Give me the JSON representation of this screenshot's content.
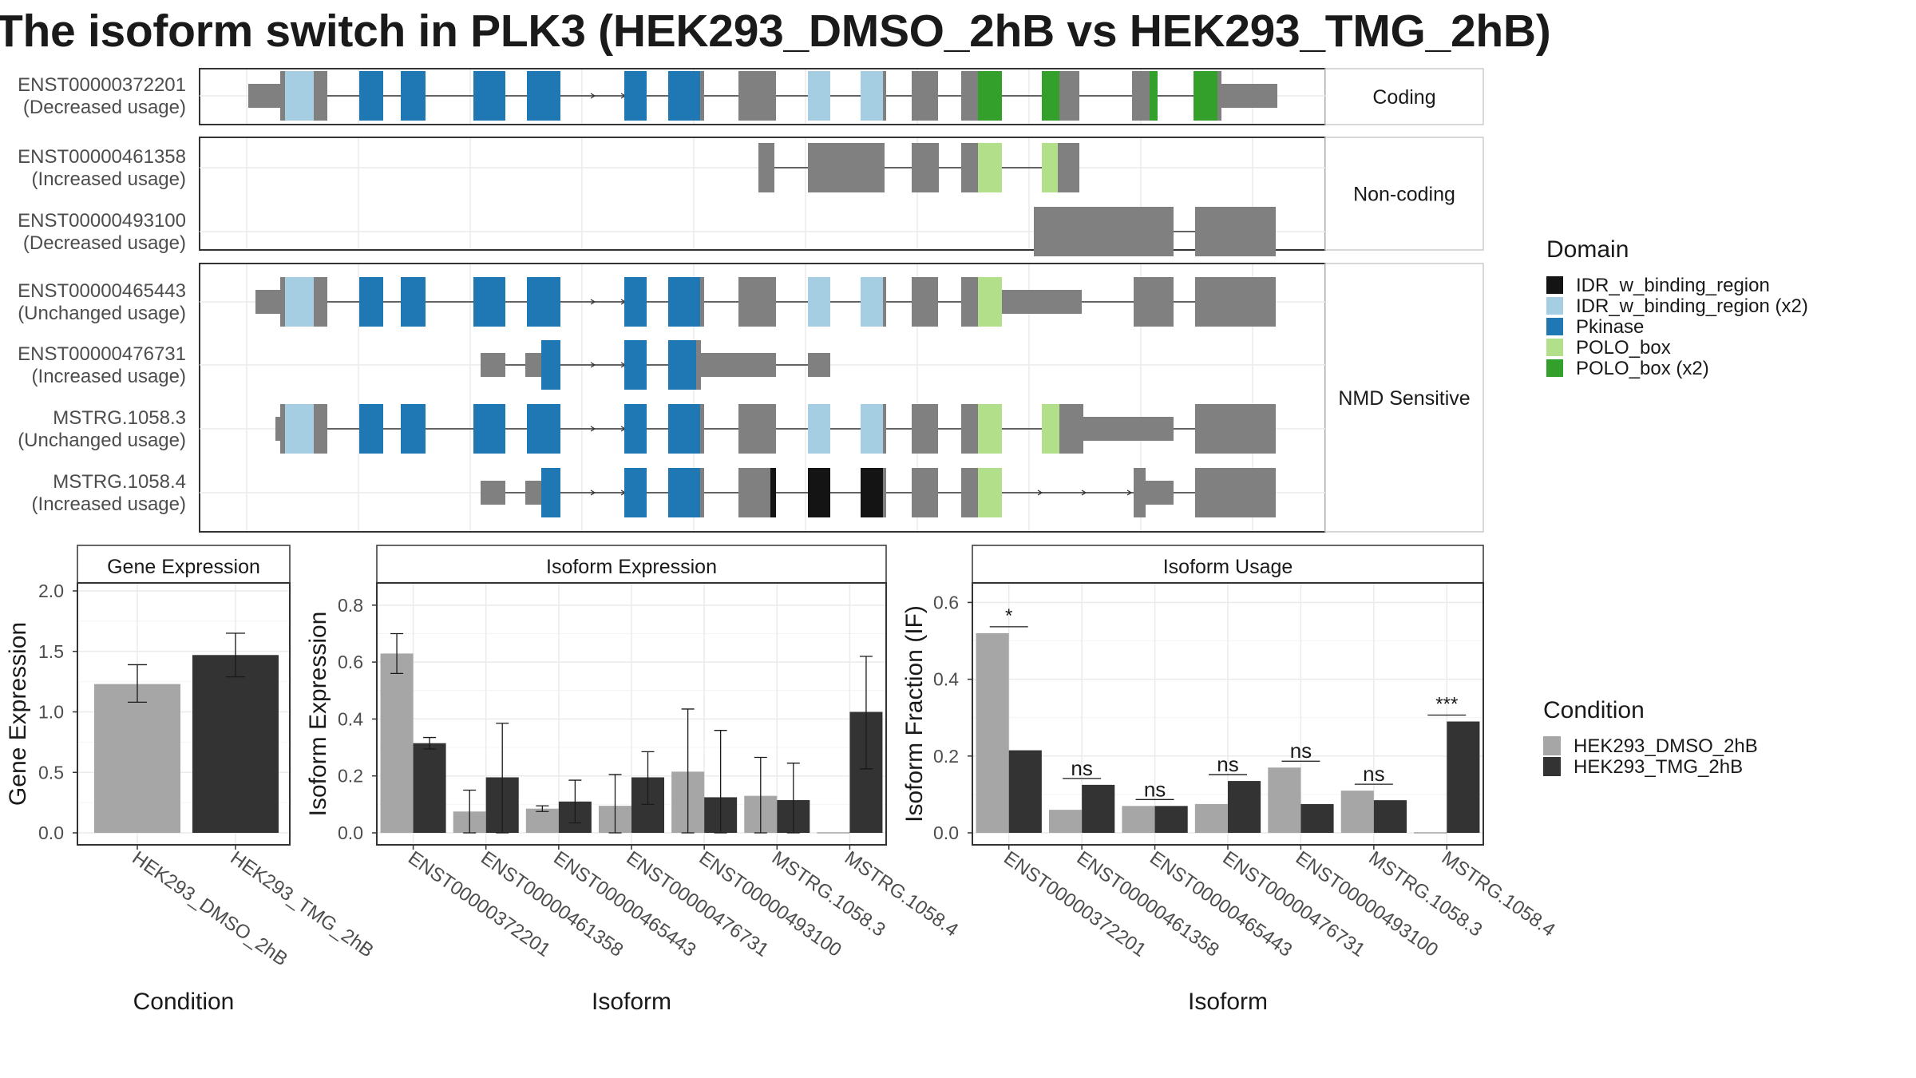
{
  "title": "The isoform switch in PLK3 (HEK293_DMSO_2hB vs HEK293_TMG_2hB)",
  "colors": {
    "utr_gray": "#808080",
    "idr": "#141414",
    "idr_x2": "#a6cee3",
    "pkinase": "#1f78b4",
    "polo": "#b2df8a",
    "polo_x2": "#33a02c",
    "dmso": "#a6a6a6",
    "tmg": "#333333",
    "panel_border": "#333333",
    "grid": "#ebebeb"
  },
  "structure": {
    "groups": [
      {
        "label": "Coding",
        "isoforms": [
          {
            "id": "ENST00000372201",
            "usage": "(Decreased usage)"
          }
        ]
      },
      {
        "label": "Non-coding",
        "isoforms": [
          {
            "id": "ENST00000461358",
            "usage": "(Increased usage)"
          },
          {
            "id": "ENST00000493100",
            "usage": "(Decreased usage)"
          }
        ]
      },
      {
        "label": "NMD Sensitive",
        "isoforms": [
          {
            "id": "ENST00000465443",
            "usage": "(Unchanged usage)"
          },
          {
            "id": "ENST00000476731",
            "usage": "(Increased usage)"
          },
          {
            "id": "MSTRG.1058.3",
            "usage": "(Unchanged usage)"
          },
          {
            "id": "MSTRG.1058.4",
            "usage": "(Increased usage)"
          }
        ]
      }
    ]
  },
  "domain_legend": {
    "title": "Domain",
    "items": [
      {
        "label": "IDR_w_binding_region",
        "color": "#141414"
      },
      {
        "label": "IDR_w_binding_region (x2)",
        "color": "#a6cee3"
      },
      {
        "label": "Pkinase",
        "color": "#1f78b4"
      },
      {
        "label": "POLO_box",
        "color": "#b2df8a"
      },
      {
        "label": "POLO_box (x2)",
        "color": "#33a02c"
      }
    ]
  },
  "condition_legend": {
    "title": "Condition",
    "items": [
      {
        "label": "HEK293_DMSO_2hB",
        "color": "#a6a6a6"
      },
      {
        "label": "HEK293_TMG_2hB",
        "color": "#333333"
      }
    ]
  },
  "chart_data": [
    {
      "type": "bar",
      "title": "Gene Expression",
      "xlabel": "Condition",
      "ylabel": "Gene Expression",
      "ylim": [
        0,
        2.0
      ],
      "yticks": [
        "0.0",
        "0.5",
        "1.0",
        "1.5",
        "2.0"
      ],
      "categories": [
        "HEK293_DMSO_2hB",
        "HEK293_TMG_2hB"
      ],
      "values": [
        1.23,
        1.47
      ],
      "error_low": [
        1.08,
        1.29
      ],
      "error_high": [
        1.39,
        1.65
      ]
    },
    {
      "type": "bar",
      "title": "Isoform Expression",
      "xlabel": "Isoform",
      "ylabel": "Isoform Expression",
      "ylim": [
        0,
        0.85
      ],
      "yticks": [
        "0.0",
        "0.2",
        "0.4",
        "0.6",
        "0.8"
      ],
      "categories": [
        "ENST00000372201",
        "ENST00000461358",
        "ENST00000465443",
        "ENST00000476731",
        "ENST00000493100",
        "MSTRG.1058.3",
        "MSTRG.1058.4"
      ],
      "series": [
        {
          "name": "HEK293_DMSO_2hB",
          "values": [
            0.63,
            0.075,
            0.085,
            0.095,
            0.215,
            0.13,
            0.0
          ],
          "error_low": [
            0.56,
            0.0,
            0.075,
            0.0,
            0.0,
            0.0,
            0.0
          ],
          "error_high": [
            0.7,
            0.15,
            0.095,
            0.205,
            0.435,
            0.265,
            0.0
          ]
        },
        {
          "name": "HEK293_TMG_2hB",
          "values": [
            0.315,
            0.195,
            0.11,
            0.195,
            0.125,
            0.115,
            0.425
          ],
          "error_low": [
            0.295,
            0.0,
            0.035,
            0.1,
            0.0,
            0.0,
            0.225
          ],
          "error_high": [
            0.335,
            0.385,
            0.185,
            0.285,
            0.36,
            0.245,
            0.62
          ]
        }
      ]
    },
    {
      "type": "bar",
      "title": "Isoform Usage",
      "xlabel": "Isoform",
      "ylabel": "Isoform Fraction (IF)",
      "ylim": [
        0,
        0.63
      ],
      "yticks": [
        "0.0",
        "0.2",
        "0.4",
        "0.6"
      ],
      "categories": [
        "ENST00000372201",
        "ENST00000461358",
        "ENST00000465443",
        "ENST00000476731",
        "ENST00000493100",
        "MSTRG.1058.3",
        "MSTRG.1058.4"
      ],
      "series": [
        {
          "name": "HEK293_DMSO_2hB",
          "values": [
            0.52,
            0.06,
            0.07,
            0.075,
            0.17,
            0.11,
            0.0
          ]
        },
        {
          "name": "HEK293_TMG_2hB",
          "values": [
            0.215,
            0.125,
            0.07,
            0.135,
            0.075,
            0.085,
            0.29
          ]
        }
      ],
      "significance": [
        "*",
        "ns",
        "ns",
        "ns",
        "ns",
        "ns",
        "***"
      ]
    }
  ]
}
